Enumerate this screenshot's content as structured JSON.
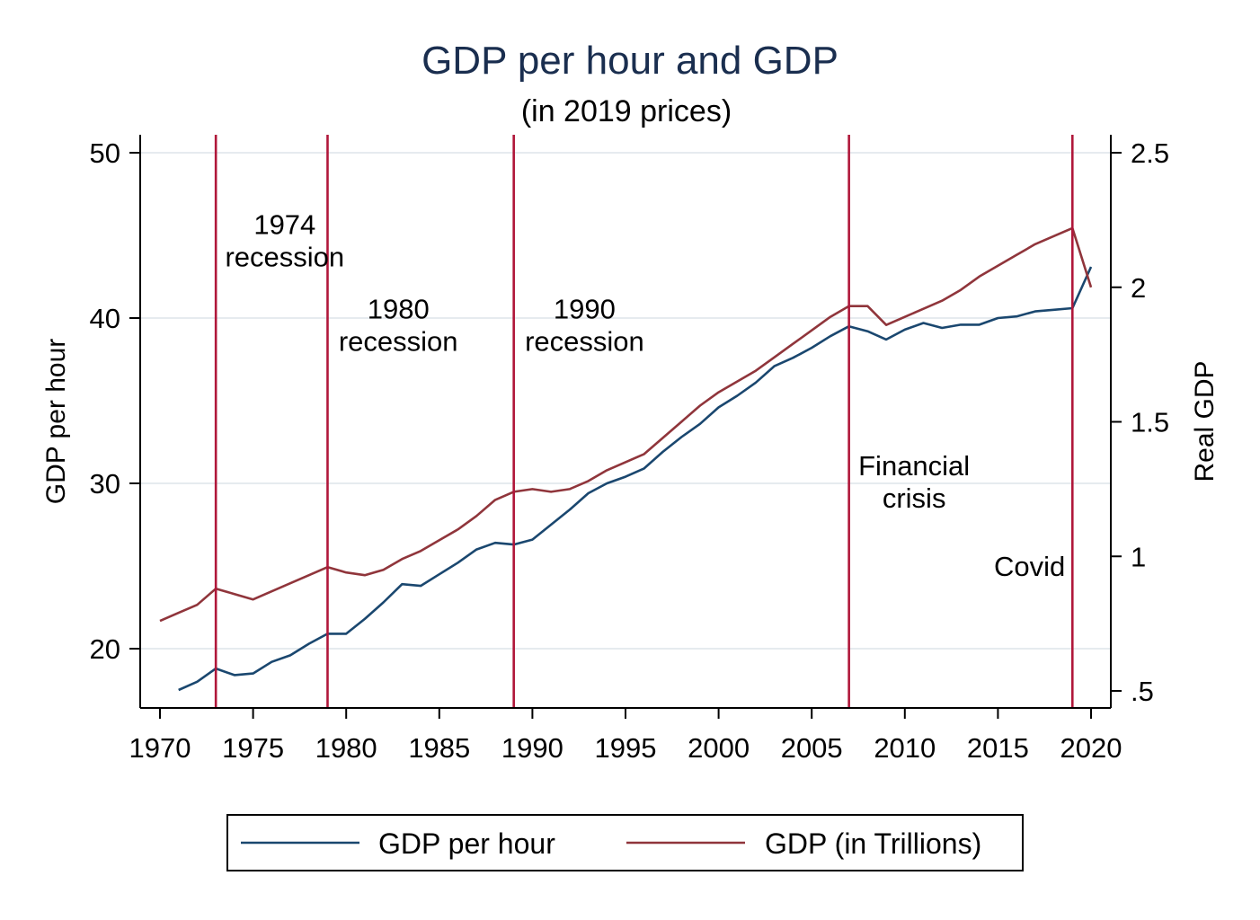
{
  "chart_data": {
    "type": "line",
    "title": "GDP per hour and GDP",
    "subtitle": "(in 2019 prices)",
    "xlabel": "",
    "ylabel_left": "GDP per hour",
    "ylabel_right": "Real GDP",
    "xlim": [
      1970,
      2020
    ],
    "ylim_left": [
      16.8,
      51
    ],
    "ylim_right": [
      0.45,
      2.55
    ],
    "x_ticks": [
      1970,
      1975,
      1980,
      1985,
      1990,
      1995,
      2000,
      2005,
      2010,
      2015,
      2020
    ],
    "x_tick_labels": [
      "1970",
      "1975",
      "1980",
      "1985",
      "1990",
      "1995",
      "2000",
      "2005",
      "2010",
      "2015",
      "2020"
    ],
    "y_left_ticks": [
      20,
      30,
      40,
      50
    ],
    "y_left_tick_labels": [
      "20",
      "30",
      "40",
      "50"
    ],
    "y_right_ticks": [
      0.5,
      1,
      1.5,
      2,
      2.5
    ],
    "y_right_tick_labels": [
      ".5",
      "1",
      "1.5",
      "2",
      "2.5"
    ],
    "grid": true,
    "legend_position": "bottom",
    "series": [
      {
        "name": "GDP per hour",
        "axis": "left",
        "color": "#1a476f",
        "x": [
          1971,
          1972,
          1973,
          1974,
          1975,
          1976,
          1977,
          1978,
          1979,
          1980,
          1981,
          1982,
          1983,
          1984,
          1985,
          1986,
          1987,
          1988,
          1989,
          1990,
          1991,
          1992,
          1993,
          1994,
          1995,
          1996,
          1997,
          1998,
          1999,
          2000,
          2001,
          2002,
          2003,
          2004,
          2005,
          2006,
          2007,
          2008,
          2009,
          2010,
          2011,
          2012,
          2013,
          2014,
          2015,
          2016,
          2017,
          2018,
          2019,
          2020
        ],
        "values": [
          17.5,
          18.0,
          18.8,
          18.4,
          18.5,
          19.2,
          19.6,
          20.3,
          20.9,
          20.9,
          21.8,
          22.8,
          23.9,
          23.8,
          24.5,
          25.2,
          26.0,
          26.4,
          26.3,
          26.6,
          27.5,
          28.4,
          29.4,
          30.0,
          30.4,
          30.9,
          31.9,
          32.8,
          33.6,
          34.6,
          35.3,
          36.1,
          37.1,
          37.6,
          38.2,
          38.9,
          39.5,
          39.2,
          38.7,
          39.3,
          39.7,
          39.4,
          39.6,
          39.6,
          40.0,
          40.1,
          40.4,
          40.5,
          40.6,
          43.1
        ]
      },
      {
        "name": "GDP (in Trillions)",
        "axis": "right",
        "color": "#90353b",
        "x": [
          1970,
          1971,
          1972,
          1973,
          1974,
          1975,
          1976,
          1977,
          1978,
          1979,
          1980,
          1981,
          1982,
          1983,
          1984,
          1985,
          1986,
          1987,
          1988,
          1989,
          1990,
          1991,
          1992,
          1993,
          1994,
          1995,
          1996,
          1997,
          1998,
          1999,
          2000,
          2001,
          2002,
          2003,
          2004,
          2005,
          2006,
          2007,
          2008,
          2009,
          2010,
          2011,
          2012,
          2013,
          2014,
          2015,
          2016,
          2017,
          2018,
          2019,
          2020
        ],
        "values": [
          0.76,
          0.79,
          0.82,
          0.88,
          0.86,
          0.84,
          0.87,
          0.9,
          0.93,
          0.96,
          0.94,
          0.93,
          0.95,
          0.99,
          1.02,
          1.06,
          1.1,
          1.15,
          1.21,
          1.24,
          1.25,
          1.24,
          1.25,
          1.28,
          1.32,
          1.35,
          1.38,
          1.44,
          1.5,
          1.56,
          1.61,
          1.65,
          1.69,
          1.74,
          1.79,
          1.84,
          1.89,
          1.93,
          1.93,
          1.86,
          1.89,
          1.92,
          1.95,
          1.99,
          2.04,
          2.08,
          2.12,
          2.16,
          2.19,
          2.22,
          2.0
        ]
      }
    ],
    "reference_lines": [
      {
        "x": 1973,
        "color": "#b0173a"
      },
      {
        "x": 1979,
        "color": "#b0173a"
      },
      {
        "x": 1989,
        "color": "#b0173a"
      },
      {
        "x": 2007,
        "color": "#b0173a"
      },
      {
        "x": 2019,
        "color": "#b0173a"
      }
    ],
    "annotations": [
      {
        "lines": [
          "1974",
          "recession"
        ],
        "x": 1976.7,
        "y": 44.7
      },
      {
        "lines": [
          "1980",
          "recession"
        ],
        "x": 1982.8,
        "y": 39.6
      },
      {
        "lines": [
          "1990",
          "recession"
        ],
        "x": 1992.8,
        "y": 39.6
      },
      {
        "lines": [
          "Financial",
          "crisis"
        ],
        "x": 2010.5,
        "y": 30.1
      },
      {
        "lines": [
          "Covid"
        ],
        "x": 2016.7,
        "y": 25.0
      }
    ],
    "colors": {
      "text": "#000000",
      "title": "#1a2e4f",
      "grid": "#e6ebef",
      "axis": "#000000"
    }
  }
}
